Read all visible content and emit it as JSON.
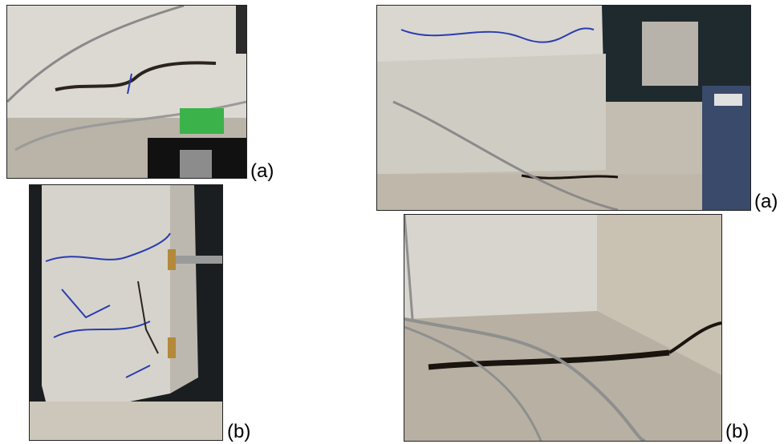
{
  "figure": {
    "left_panel": {
      "photo_a": {
        "caption": "(a)",
        "subject": "column-face-crack-with-sensors-photo"
      },
      "photo_b": {
        "caption": "(b)",
        "subject": "column-corner-cracking-photo"
      }
    },
    "right_panel": {
      "photo_a": {
        "caption": "(a)",
        "subject": "column-base-crack-photo"
      },
      "photo_b": {
        "caption": "(b)",
        "subject": "base-slab-crack-closeup-photo"
      }
    }
  },
  "colors": {
    "concrete": "#d9d7d1",
    "crack_marker": "#2a3cb0",
    "crack_dark": "#1a140f",
    "background_dark": "#1b1e20"
  }
}
